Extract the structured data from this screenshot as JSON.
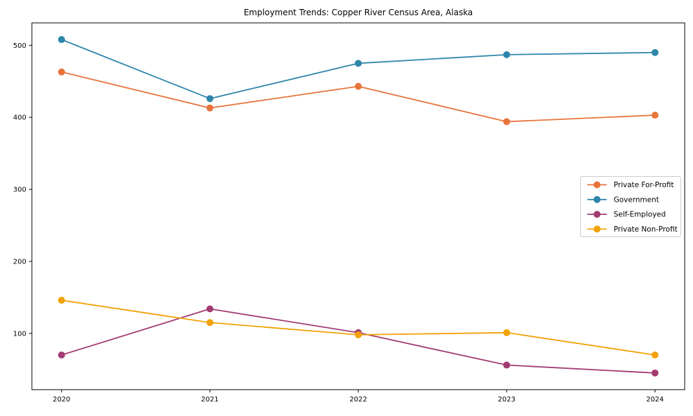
{
  "chart_data": {
    "type": "line",
    "title": "Employment Trends: Copper River Census Area, Alaska",
    "xlabel": "",
    "ylabel": "",
    "x": [
      2020,
      2021,
      2022,
      2023,
      2024
    ],
    "categories": [
      "2020",
      "2021",
      "2022",
      "2023",
      "2024"
    ],
    "series": [
      {
        "name": "Private For-Profit",
        "color": "#E8743B",
        "values": [
          463,
          413,
          443,
          394,
          403
        ]
      },
      {
        "name": "Government",
        "color": "#2E86AB",
        "values": [
          508,
          426,
          475,
          487,
          490
        ]
      },
      {
        "name": "Self-Employed",
        "color": "#A23B72",
        "values": [
          70,
          134,
          101,
          56,
          45
        ]
      },
      {
        "name": "Private Non-Profit",
        "color": "#F1A208",
        "values": [
          146,
          115,
          98,
          101,
          70
        ]
      }
    ],
    "xlim": [
      2019.8,
      2024.2
    ],
    "ylim": [
      21.85,
      531.15
    ],
    "xticks": [
      2020,
      2021,
      2022,
      2023,
      2024
    ],
    "xtick_labels": [
      "2020",
      "2021",
      "2022",
      "2023",
      "2024"
    ],
    "yticks": [
      100,
      200,
      300,
      400,
      500
    ],
    "ytick_labels": [
      "100",
      "200",
      "300",
      "400",
      "500"
    ],
    "grid": false,
    "marker": "o",
    "legend_position": "center right",
    "legend_border_color": "#cccccc",
    "spine_color": "#000000",
    "background_color": "#ffffff"
  }
}
